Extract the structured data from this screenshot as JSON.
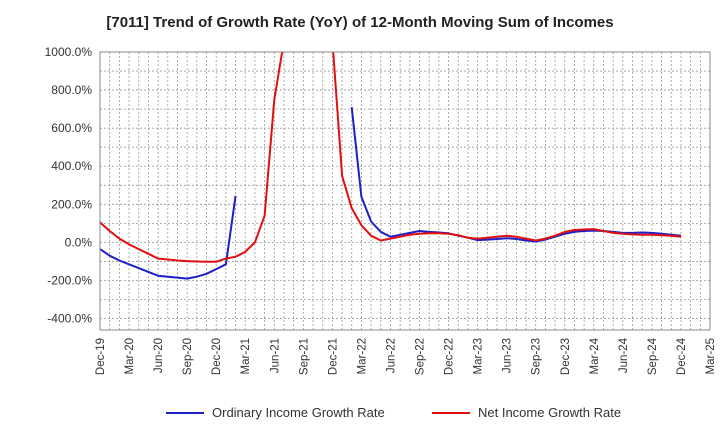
{
  "chart_data": {
    "type": "line",
    "title": "[7011]  Trend of Growth Rate (YoY) of 12-Month Moving Sum of Incomes",
    "xlabel": "",
    "ylabel": "",
    "ylim": [
      -460,
      1000
    ],
    "y_ticks": [
      1000,
      800,
      600,
      400,
      200,
      0,
      -200,
      -400
    ],
    "y_tick_labels": [
      "1000.0%",
      "800.0%",
      "600.0%",
      "400.0%",
      "200.0%",
      "0.0%",
      "-200.0%",
      "-400.0%"
    ],
    "x_tick_labels": [
      "Dec-19",
      "Mar-20",
      "Jun-20",
      "Sep-20",
      "Dec-20",
      "Mar-21",
      "Jun-21",
      "Sep-21",
      "Dec-21",
      "Mar-22",
      "Jun-22",
      "Sep-22",
      "Dec-22",
      "Mar-23",
      "Jun-23",
      "Sep-23",
      "Dec-23",
      "Mar-24",
      "Jun-24",
      "Sep-24",
      "Dec-24",
      "Mar-25"
    ],
    "grid": true,
    "legend_position": "bottom",
    "series": [
      {
        "name": "Ordinary Income Growth Rate",
        "color": "#1f1fc8",
        "points": [
          [
            "Dec-19",
            -35
          ],
          [
            "Jan-20",
            -70
          ],
          [
            "Feb-20",
            -95
          ],
          [
            "Mar-20",
            -115
          ],
          [
            "Apr-20",
            -135
          ],
          [
            "May-20",
            -155
          ],
          [
            "Jun-20",
            -175
          ],
          [
            "Jul-20",
            -180
          ],
          [
            "Aug-20",
            -185
          ],
          [
            "Sep-20",
            -190
          ],
          [
            "Oct-20",
            -180
          ],
          [
            "Nov-20",
            -165
          ],
          [
            "Dec-20",
            -140
          ],
          [
            "Jan-21",
            -115
          ],
          [
            "Feb-21",
            245
          ],
          null,
          [
            "Feb-22",
            710
          ],
          [
            "Mar-22",
            240
          ],
          [
            "Apr-22",
            110
          ],
          [
            "May-22",
            55
          ],
          [
            "Jun-22",
            30
          ],
          [
            "Jul-22",
            40
          ],
          [
            "Aug-22",
            50
          ],
          [
            "Sep-22",
            60
          ],
          [
            "Oct-22",
            55
          ],
          [
            "Nov-22",
            52
          ],
          [
            "Dec-22",
            48
          ],
          [
            "Jan-23",
            35
          ],
          [
            "Feb-23",
            25
          ],
          [
            "Mar-23",
            12
          ],
          [
            "Apr-23",
            15
          ],
          [
            "May-23",
            18
          ],
          [
            "Jun-23",
            22
          ],
          [
            "Jul-23",
            18
          ],
          [
            "Aug-23",
            10
          ],
          [
            "Sep-23",
            5
          ],
          [
            "Oct-23",
            15
          ],
          [
            "Nov-23",
            30
          ],
          [
            "Dec-23",
            45
          ],
          [
            "Jan-24",
            55
          ],
          [
            "Feb-24",
            60
          ],
          [
            "Mar-24",
            62
          ],
          [
            "Apr-24",
            60
          ],
          [
            "May-24",
            55
          ],
          [
            "Jun-24",
            50
          ],
          [
            "Jul-24",
            50
          ],
          [
            "Aug-24",
            52
          ],
          [
            "Sep-24",
            50
          ],
          [
            "Oct-24",
            45
          ],
          [
            "Nov-24",
            40
          ],
          [
            "Dec-24",
            35
          ]
        ]
      },
      {
        "name": "Net Income Growth Rate",
        "color": "#e01010",
        "points": [
          [
            "Dec-19",
            105
          ],
          [
            "Jan-20",
            60
          ],
          [
            "Feb-20",
            20
          ],
          [
            "Mar-20",
            -10
          ],
          [
            "Apr-20",
            -35
          ],
          [
            "May-20",
            -60
          ],
          [
            "Jun-20",
            -85
          ],
          [
            "Jul-20",
            -90
          ],
          [
            "Aug-20",
            -95
          ],
          [
            "Sep-20",
            -98
          ],
          [
            "Oct-20",
            -100
          ],
          [
            "Nov-20",
            -102
          ],
          [
            "Dec-20",
            -102
          ],
          [
            "Jan-21",
            -85
          ],
          [
            "Feb-21",
            -75
          ],
          [
            "Mar-21",
            -50
          ],
          [
            "Apr-21",
            0
          ],
          [
            "May-21",
            140
          ],
          [
            "Jun-21",
            750
          ],
          [
            "Jul-21",
            1060
          ],
          null,
          [
            "Dec-21",
            1060
          ],
          [
            "Jan-22",
            350
          ],
          [
            "Feb-22",
            180
          ],
          [
            "Mar-22",
            90
          ],
          [
            "Apr-22",
            35
          ],
          [
            "May-22",
            10
          ],
          [
            "Jun-22",
            20
          ],
          [
            "Jul-22",
            30
          ],
          [
            "Aug-22",
            40
          ],
          [
            "Sep-22",
            45
          ],
          [
            "Oct-22",
            48
          ],
          [
            "Nov-22",
            48
          ],
          [
            "Dec-22",
            45
          ],
          [
            "Jan-23",
            38
          ],
          [
            "Feb-23",
            25
          ],
          [
            "Mar-23",
            20
          ],
          [
            "Apr-23",
            25
          ],
          [
            "May-23",
            30
          ],
          [
            "Jun-23",
            35
          ],
          [
            "Jul-23",
            30
          ],
          [
            "Aug-23",
            20
          ],
          [
            "Sep-23",
            10
          ],
          [
            "Oct-23",
            20
          ],
          [
            "Nov-23",
            35
          ],
          [
            "Dec-23",
            55
          ],
          [
            "Jan-24",
            65
          ],
          [
            "Feb-24",
            68
          ],
          [
            "Mar-24",
            70
          ],
          [
            "Apr-24",
            60
          ],
          [
            "May-24",
            50
          ],
          [
            "Jun-24",
            45
          ],
          [
            "Jul-24",
            42
          ],
          [
            "Aug-24",
            40
          ],
          [
            "Sep-24",
            40
          ],
          [
            "Oct-24",
            38
          ],
          [
            "Nov-24",
            35
          ],
          [
            "Dec-24",
            30
          ]
        ]
      }
    ]
  }
}
